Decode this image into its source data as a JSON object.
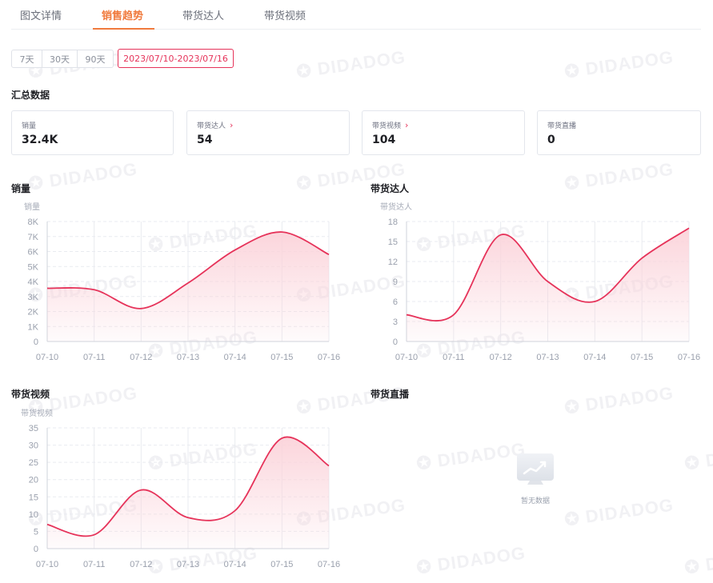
{
  "tabs": [
    {
      "label": "图文详情",
      "active": false
    },
    {
      "label": "销售趋势",
      "active": true
    },
    {
      "label": "带货达人",
      "active": false
    },
    {
      "label": "带货视频",
      "active": false
    }
  ],
  "range_buttons": [
    "7天",
    "30天",
    "90天"
  ],
  "date_range": "2023/07/10-2023/07/16",
  "summary": {
    "title": "汇总数据",
    "cards": [
      {
        "label": "销量",
        "value": "32.4K",
        "has_arrow": false
      },
      {
        "label": "带货达人",
        "value": "54",
        "has_arrow": true
      },
      {
        "label": "带货视频",
        "value": "104",
        "has_arrow": true
      },
      {
        "label": "带货直播",
        "value": "0",
        "has_arrow": false
      }
    ]
  },
  "watermark_text": "DIDADOG",
  "colors": {
    "accent_tab": "#f07a3d",
    "line": "#e6335a",
    "area": "#fbd3da"
  },
  "empty_state": {
    "text": "暂无数据",
    "icon": "empty-monitor-icon"
  },
  "chart_data": [
    {
      "type": "area",
      "title": "销量",
      "unit_label": "销量",
      "x": [
        "07-10",
        "07-11",
        "07-12",
        "07-13",
        "07-14",
        "07-15",
        "07-16"
      ],
      "y_ticks": [
        "0",
        "1K",
        "2K",
        "3K",
        "4K",
        "5K",
        "6K",
        "7K",
        "8K"
      ],
      "ylim": [
        0,
        8000
      ],
      "values": [
        3550,
        3450,
        2200,
        3900,
        6100,
        7300,
        5800
      ],
      "grid": true
    },
    {
      "type": "area",
      "title": "带货达人",
      "unit_label": "带货达人",
      "x": [
        "07-10",
        "07-11",
        "07-12",
        "07-13",
        "07-14",
        "07-15",
        "07-16"
      ],
      "y_ticks": [
        "0",
        "3",
        "6",
        "9",
        "12",
        "15",
        "18"
      ],
      "ylim": [
        0,
        18
      ],
      "values": [
        4,
        4,
        16,
        9,
        6,
        12.5,
        17
      ],
      "grid": true
    },
    {
      "type": "area",
      "title": "带货视频",
      "unit_label": "带货视频",
      "x": [
        "07-10",
        "07-11",
        "07-12",
        "07-13",
        "07-14",
        "07-15",
        "07-16"
      ],
      "y_ticks": [
        "0",
        "5",
        "10",
        "15",
        "20",
        "25",
        "30",
        "35"
      ],
      "ylim": [
        0,
        35
      ],
      "values": [
        7,
        4,
        17,
        9,
        11,
        32,
        24
      ],
      "grid": true
    },
    {
      "type": "area",
      "title": "带货直播",
      "values": []
    }
  ]
}
